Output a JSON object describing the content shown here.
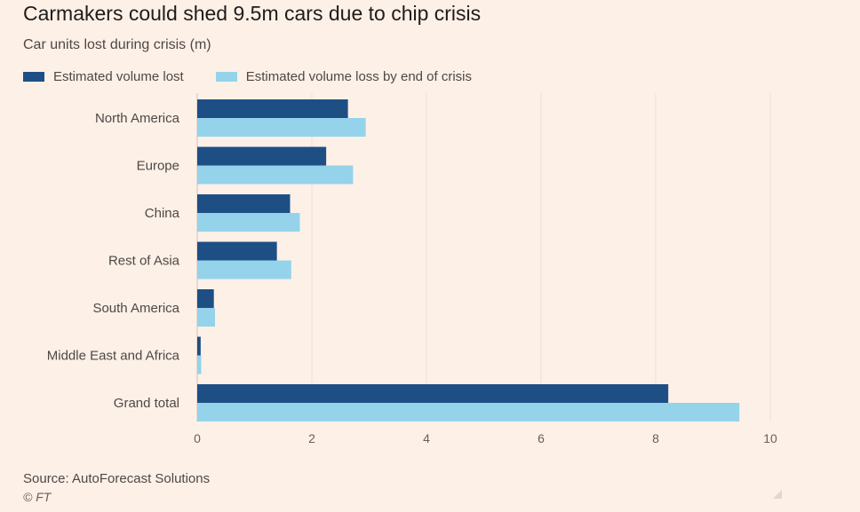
{
  "chart_data": {
    "type": "bar",
    "orientation": "horizontal",
    "title": "Carmakers could shed 9.5m cars due to chip crisis",
    "subtitle": "Car units lost during crisis (m)",
    "categories": [
      "North America",
      "Europe",
      "China",
      "Rest of Asia",
      "South America",
      "Middle East and Africa",
      "Grand total"
    ],
    "series": [
      {
        "name": "Estimated volume lost",
        "color": "#1d4f85",
        "values": [
          2.63,
          2.25,
          1.62,
          1.39,
          0.29,
          0.06,
          8.22
        ]
      },
      {
        "name": "Estimated volume loss by end of crisis",
        "color": "#94d3ea",
        "values": [
          2.94,
          2.72,
          1.79,
          1.64,
          0.31,
          0.07,
          9.46
        ]
      }
    ],
    "xlim": [
      0,
      10
    ],
    "xticks": [
      "0",
      "2",
      "4",
      "6",
      "8",
      "10"
    ],
    "grid": "vertical",
    "legend_position": "top-left"
  },
  "source": "Source: AutoForecast Solutions",
  "credit": "© FT"
}
